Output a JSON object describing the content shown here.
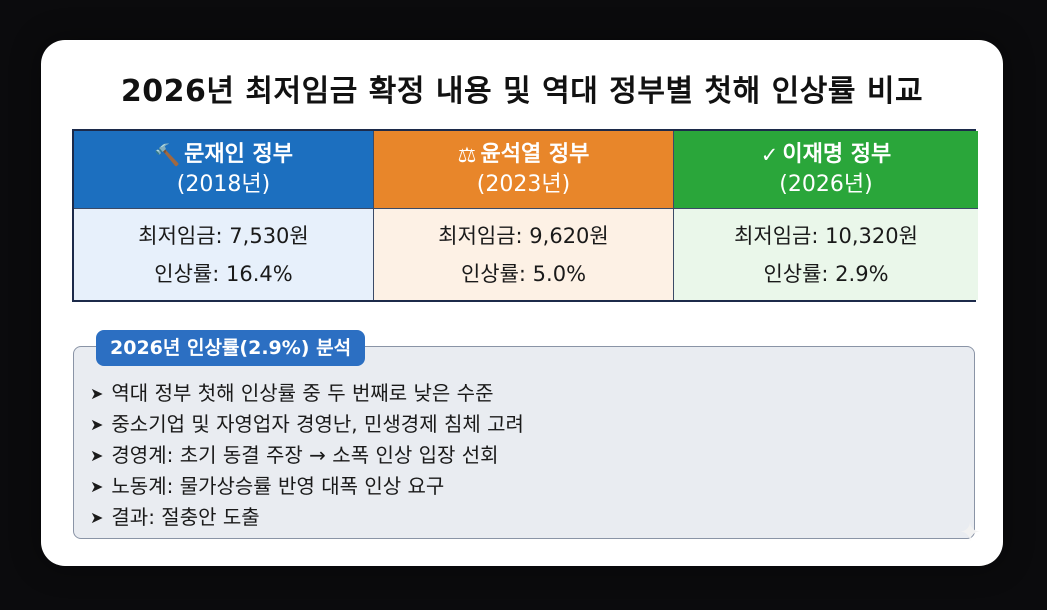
{
  "title": "2026년 최저임금 확정 내용 및 역대 정부별 첫해 인상률 비교",
  "governments": [
    {
      "icon": "gavel-icon",
      "icon_glyph": "⚖",
      "name": "문재인 정부",
      "year": "(2018년)",
      "wage": "최저임금: 7,530원",
      "rate": "인상률: 16.4%",
      "header_color": "#1c6fbf"
    },
    {
      "icon": "scales-icon",
      "icon_glyph": "⚖",
      "name": "윤석열 정부",
      "year": "(2023년)",
      "wage": "최저임금: 9,620원",
      "rate": "인상률: 5.0%",
      "header_color": "#e8862a"
    },
    {
      "icon": "checkmark-icon",
      "icon_glyph": "✓",
      "name": "이재명 정부",
      "year": "(2026년)",
      "wage": "최저임금: 10,320원",
      "rate": "인상률: 2.9%",
      "header_color": "#2aa63a"
    }
  ],
  "analysis": {
    "tag": "2026년 인상률(2.9%) 분석",
    "bullet_glyph": "➤",
    "items": [
      "역대 정부 첫해 인상률 중 두 번째로 낮은 수준",
      "중소기업 및 자영업자 경영난, 민생경제 침체 고려",
      "경영계: 초기 동결 주장 → 소폭 인상 입장 선회",
      "노동계: 물가상승률 반영 대폭 인상 요구",
      "결과: 절충안 도출"
    ]
  }
}
